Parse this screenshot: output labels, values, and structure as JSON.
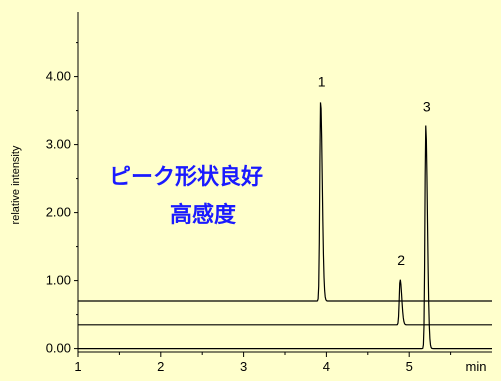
{
  "chart_data": {
    "type": "line",
    "xlabel": "min",
    "ylabel": "relative intensity",
    "xlim": [
      1,
      6.0
    ],
    "ylim": [
      -0.05,
      4.95
    ],
    "x_ticks": [
      "1",
      "2",
      "3",
      "4",
      "5"
    ],
    "x_ticks_values": [
      1,
      2,
      3,
      4,
      5
    ],
    "y_ticks": [
      "0.00",
      "1.00",
      "2.00",
      "3.00",
      "4.00"
    ],
    "y_ticks_values": [
      0,
      1,
      2,
      3,
      4
    ],
    "annotations": [
      "ピーク形状良好",
      "高感度"
    ],
    "series": [
      {
        "baseline": 0.7,
        "peaks": [
          {
            "label": "1",
            "x": 3.93,
            "y": 3.65
          }
        ]
      },
      {
        "baseline": 0.35,
        "peaks": [
          {
            "label": "2",
            "x": 4.89,
            "y": 1.02
          }
        ]
      },
      {
        "baseline": 0.0,
        "peaks": [
          {
            "label": "3",
            "x": 5.2,
            "y": 3.28
          }
        ]
      }
    ],
    "peak_labels": [
      "1",
      "2",
      "3"
    ]
  }
}
